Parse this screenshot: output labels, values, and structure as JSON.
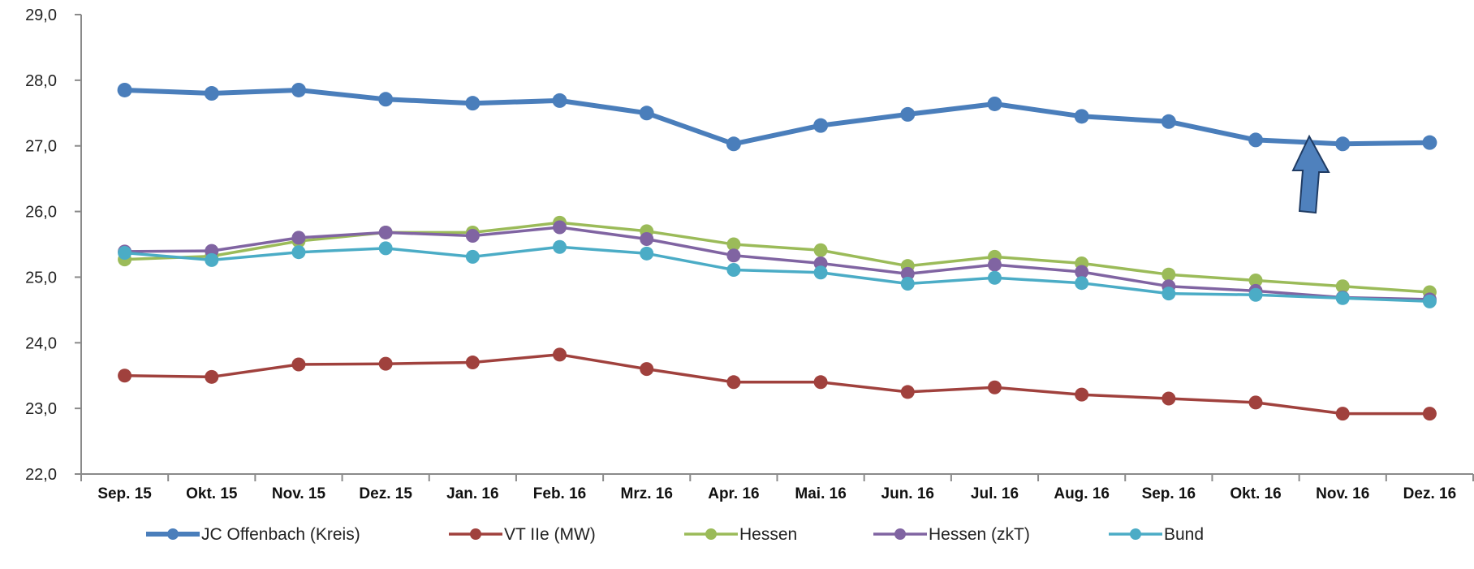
{
  "chart_data": {
    "type": "line",
    "title": "",
    "xlabel": "",
    "ylabel": "",
    "categories": [
      "Sep. 15",
      "Okt. 15",
      "Nov. 15",
      "Dez. 15",
      "Jan. 16",
      "Feb. 16",
      "Mrz. 16",
      "Apr. 16",
      "Mai. 16",
      "Jun. 16",
      "Jul. 16",
      "Aug. 16",
      "Sep. 16",
      "Okt. 16",
      "Nov. 16",
      "Dez. 16"
    ],
    "ylim": [
      22.0,
      29.0
    ],
    "yticks": [
      "22,0",
      "23,0",
      "24,0",
      "25,0",
      "26,0",
      "27,0",
      "28,0",
      "29,0"
    ],
    "grid": false,
    "legend_position": "bottom",
    "series": [
      {
        "name": "JC Offenbach (Kreis)",
        "color": "#4a7ebb",
        "values": [
          27.85,
          27.8,
          27.85,
          27.71,
          27.65,
          27.69,
          27.5,
          27.03,
          27.31,
          27.48,
          27.64,
          27.45,
          27.37,
          27.09,
          27.03,
          27.05
        ]
      },
      {
        "name": "VT IIe (MW)",
        "color": "#a0413d",
        "values": [
          23.5,
          23.48,
          23.67,
          23.68,
          23.7,
          23.82,
          23.6,
          23.4,
          23.4,
          23.25,
          23.32,
          23.21,
          23.15,
          23.09,
          22.92,
          22.92
        ]
      },
      {
        "name": "Hessen",
        "color": "#9bbb59",
        "values": [
          25.27,
          25.32,
          25.55,
          25.68,
          25.68,
          25.83,
          25.7,
          25.5,
          25.41,
          25.17,
          25.31,
          25.21,
          25.04,
          24.95,
          24.86,
          24.77
        ]
      },
      {
        "name": "Hessen (zkT)",
        "color": "#8064a2",
        "values": [
          25.39,
          25.4,
          25.6,
          25.68,
          25.63,
          25.76,
          25.58,
          25.33,
          25.21,
          25.05,
          25.19,
          25.08,
          24.86,
          24.79,
          24.69,
          24.66
        ]
      },
      {
        "name": "Bund",
        "color": "#4bacc6",
        "values": [
          25.37,
          25.26,
          25.38,
          25.44,
          25.31,
          25.46,
          25.36,
          25.11,
          25.07,
          24.9,
          24.99,
          24.91,
          24.75,
          24.73,
          24.68,
          24.63
        ]
      }
    ],
    "annotation": {
      "type": "arrow-up",
      "color": "#4f81bd",
      "near_category": "Okt. 16"
    }
  }
}
